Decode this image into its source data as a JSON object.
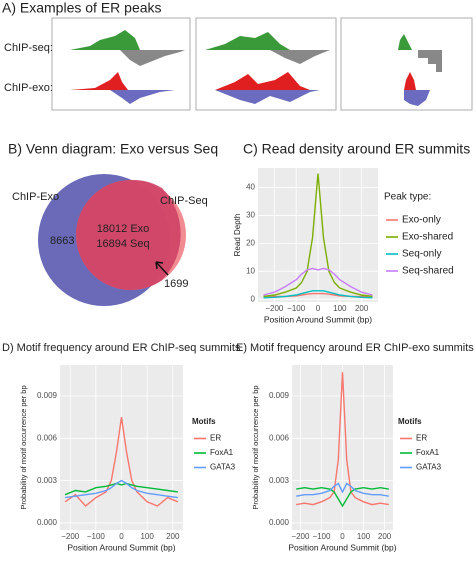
{
  "panel_a": {
    "title": "A) Examples of ER peaks",
    "row_labels": [
      "ChIP-seq:",
      "ChIP-exo:"
    ]
  },
  "venn": {
    "title": "B) Venn diagram: Exo versus Seq",
    "exo_label": "ChIP-Exo",
    "seq_label": "ChIP-Seq",
    "exo_only": "8663",
    "overlap_exo": "18012 Exo",
    "overlap_seq": "16894 Seq",
    "seq_only": "1699"
  },
  "chart_data": [
    {
      "type": "line",
      "title": "C) Read density around ER summits",
      "xlabel": "Position Around Summit (bp)",
      "ylabel": "Read Depth",
      "legend_title": "Peak type:",
      "legend": "right",
      "grid": true,
      "x": [
        -250,
        -200,
        -150,
        -100,
        -75,
        -50,
        -25,
        0,
        25,
        50,
        75,
        100,
        150,
        200,
        250
      ],
      "series": [
        {
          "name": "Exo-only",
          "color": "#f8766d",
          "values": [
            1,
            1,
            1,
            1.2,
            1.5,
            1.8,
            2,
            2,
            2,
            1.8,
            1.5,
            1.2,
            1,
            1,
            1
          ]
        },
        {
          "name": "Exo-shared",
          "color": "#7cae00",
          "values": [
            1,
            1.5,
            2.5,
            4,
            6,
            10,
            22,
            45,
            22,
            10,
            6,
            4,
            2.5,
            1.5,
            1
          ]
        },
        {
          "name": "Seq-only",
          "color": "#00bfc4",
          "values": [
            0.5,
            0.7,
            1,
            1.5,
            2,
            2.5,
            3,
            3,
            3,
            2.5,
            2,
            1.5,
            1,
            0.7,
            0.5
          ]
        },
        {
          "name": "Seq-shared",
          "color": "#c77cff",
          "values": [
            1.5,
            2.5,
            4.5,
            7,
            9,
            10.5,
            11,
            10.5,
            11,
            10.5,
            9,
            7,
            4.5,
            2.5,
            1.5
          ]
        }
      ],
      "xlim": [
        -275,
        275
      ],
      "ylim": [
        -1,
        47
      ],
      "xticks": [
        {
          "value": -200,
          "label": "−200"
        },
        {
          "value": -100,
          "label": "−100"
        },
        0,
        100,
        200
      ],
      "yticks": [
        0,
        10,
        20,
        30,
        40
      ]
    },
    {
      "type": "line",
      "title": "D) Motif frequency around ER ChIP-seq summits",
      "xlabel": "Position Around Summit (bp)",
      "ylabel": "Probability of motif occurrence per bp",
      "legend_title": "Motifs",
      "legend": "right",
      "grid": true,
      "x": [
        -220,
        -180,
        -140,
        -100,
        -60,
        -40,
        -20,
        0,
        20,
        40,
        60,
        100,
        140,
        180,
        220
      ],
      "series": [
        {
          "name": "ER",
          "color": "#f8766d",
          "values": [
            0.0015,
            0.002,
            0.0012,
            0.0018,
            0.0022,
            0.003,
            0.005,
            0.0075,
            0.005,
            0.003,
            0.0022,
            0.0015,
            0.0012,
            0.0018,
            0.0015
          ]
        },
        {
          "name": "FoxA1",
          "color": "#00ba38",
          "values": [
            0.002,
            0.0023,
            0.0022,
            0.0025,
            0.0026,
            0.0027,
            0.0028,
            0.0027,
            0.0028,
            0.0027,
            0.0026,
            0.0025,
            0.0024,
            0.0023,
            0.0022
          ]
        },
        {
          "name": "GATA3",
          "color": "#619cff",
          "values": [
            0.0018,
            0.0019,
            0.002,
            0.0021,
            0.0023,
            0.0025,
            0.0028,
            0.003,
            0.0028,
            0.0025,
            0.0023,
            0.0021,
            0.002,
            0.0019,
            0.0018
          ]
        }
      ],
      "xlim": [
        -240,
        240
      ],
      "ylim": [
        -0.0005,
        0.0112
      ],
      "xticks": [
        {
          "value": -200,
          "label": "−200"
        },
        {
          "value": -100,
          "label": "−100"
        },
        0,
        100,
        200
      ],
      "yticks": [
        {
          "value": 0,
          "label": "0.000"
        },
        {
          "value": 0.003,
          "label": "0.003"
        },
        {
          "value": 0.006,
          "label": "0.006"
        },
        {
          "value": 0.009,
          "label": "0.009"
        }
      ]
    },
    {
      "type": "line",
      "title": "E) Motif frequency around ER ChIP-exo summits",
      "xlabel": "Position Around Summit (bp)",
      "ylabel": "Probability of motif occurrence per bp",
      "legend_title": "Motifs",
      "legend": "right",
      "grid": true,
      "x": [
        -220,
        -180,
        -140,
        -100,
        -60,
        -40,
        -20,
        0,
        20,
        40,
        60,
        100,
        140,
        180,
        220
      ],
      "series": [
        {
          "name": "ER",
          "color": "#f8766d",
          "values": [
            0.0013,
            0.0014,
            0.0013,
            0.0015,
            0.0018,
            0.0022,
            0.0045,
            0.0107,
            0.0045,
            0.0022,
            0.0018,
            0.0015,
            0.0013,
            0.0014,
            0.0013
          ]
        },
        {
          "name": "FoxA1",
          "color": "#00ba38",
          "values": [
            0.0024,
            0.0025,
            0.0024,
            0.0025,
            0.0024,
            0.0022,
            0.0017,
            0.0012,
            0.0017,
            0.0022,
            0.0024,
            0.0025,
            0.0024,
            0.0025,
            0.0024
          ]
        },
        {
          "name": "GATA3",
          "color": "#619cff",
          "values": [
            0.0019,
            0.002,
            0.002,
            0.0021,
            0.0023,
            0.0026,
            0.0028,
            0.0022,
            0.0028,
            0.0026,
            0.0023,
            0.0021,
            0.002,
            0.002,
            0.0019
          ]
        }
      ],
      "xlim": [
        -240,
        240
      ],
      "ylim": [
        -0.0005,
        0.0112
      ],
      "xticks": [
        {
          "value": -200,
          "label": "−200"
        },
        {
          "value": -100,
          "label": "−100"
        },
        0,
        100,
        200
      ],
      "yticks": [
        {
          "value": 0,
          "label": "0.000"
        },
        {
          "value": 0.003,
          "label": "0.003"
        },
        {
          "value": 0.006,
          "label": "0.006"
        },
        {
          "value": 0.009,
          "label": "0.009"
        }
      ]
    }
  ]
}
